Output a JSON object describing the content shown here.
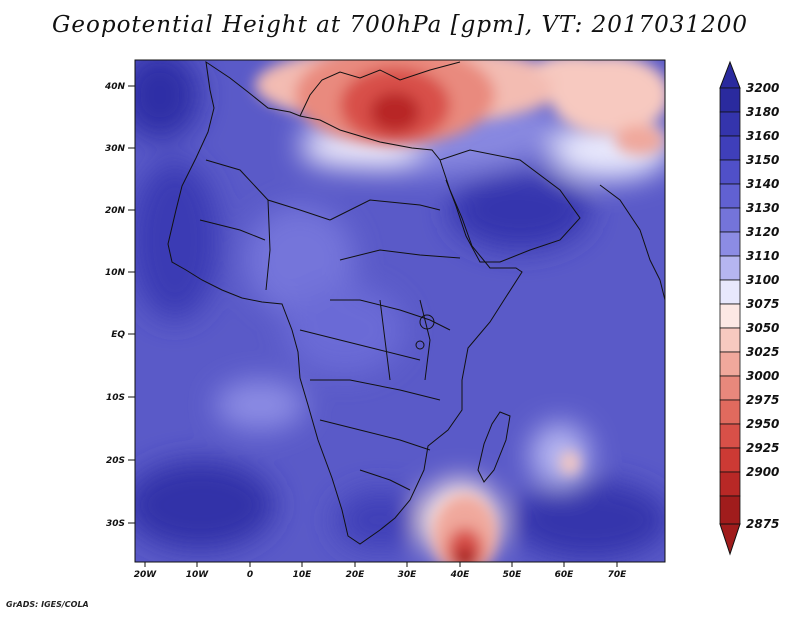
{
  "title": "Geopotential Height at 700hPa [gpm], VT: 2017031200",
  "credit": "GrADS: IGES/COLA",
  "map": {
    "lat_labels": [
      "40N",
      "30N",
      "20N",
      "10N",
      "EQ",
      "10S",
      "20S",
      "30S"
    ],
    "lon_labels": [
      "20W",
      "10W",
      "0",
      "10E",
      "20E",
      "30E",
      "40E",
      "50E",
      "60E",
      "70E"
    ]
  },
  "colorbar": {
    "levels": [
      "3200",
      "3180",
      "3160",
      "3150",
      "3140",
      "3130",
      "3120",
      "3110",
      "3100",
      "3075",
      "3050",
      "3025",
      "3000",
      "2975",
      "2950",
      "2925",
      "2900",
      "2875"
    ],
    "colors": [
      "#2a2a9e",
      "#3434ac",
      "#3f3fba",
      "#5050c8",
      "#6161d2",
      "#7474da",
      "#8c8ce4",
      "#b5b5f0",
      "#e8e8fc",
      "#fce8e4",
      "#f7c9c0",
      "#f0a89c",
      "#e8887c",
      "#e06a5e",
      "#d85048",
      "#cc3a34",
      "#b82826",
      "#a01c1c"
    ]
  },
  "colors": {
    "ocean_base": "#5a5ac8",
    "high_blue": "#3a3ab8",
    "low_red": "#cc2c28"
  }
}
